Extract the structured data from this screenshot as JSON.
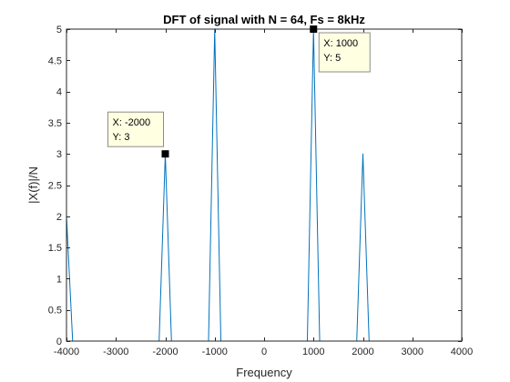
{
  "chart_data": {
    "type": "line",
    "title": "DFT of signal with N = 64, Fs = 8kHz",
    "xlabel": "Frequency",
    "ylabel": "|X(f)|/N",
    "xlim": [
      -4000,
      4000
    ],
    "ylim": [
      0,
      5
    ],
    "xticks": [
      -4000,
      -3000,
      -2000,
      -1000,
      0,
      1000,
      2000,
      3000,
      4000
    ],
    "yticks": [
      0,
      0.5,
      1,
      1.5,
      2,
      2.5,
      3,
      3.5,
      4,
      4.5,
      5
    ],
    "xtick_labels": [
      "-4000",
      "-3000",
      "-2000",
      "-1000",
      "0",
      "1000",
      "2000",
      "3000",
      "4000"
    ],
    "ytick_labels": [
      "0",
      "0.5",
      "1",
      "1.5",
      "2",
      "2.5",
      "3",
      "3.5",
      "4",
      "4.5",
      "5"
    ],
    "grid": false,
    "colors": {
      "line": "#0072BD",
      "marker": "#000000",
      "tip_fill": "#FFFFE1",
      "tip_border": "#8C8C8C"
    },
    "series": [
      {
        "x": [
          -4000,
          -3875,
          -2125,
          -2000,
          -1875,
          -1125,
          -1000,
          -875,
          875,
          1000,
          1125,
          1875,
          2000,
          2125,
          3875
        ],
        "y": [
          2,
          0,
          0,
          3,
          0,
          0,
          5,
          0,
          0,
          5,
          0,
          0,
          3,
          0,
          0
        ]
      }
    ],
    "datatips": [
      {
        "x": 1000,
        "y": 5,
        "line1": "X: 1000",
        "line2": "Y: 5"
      },
      {
        "x": -2000,
        "y": 3,
        "line1": "X: -2000",
        "line2": "Y: 3"
      }
    ]
  }
}
